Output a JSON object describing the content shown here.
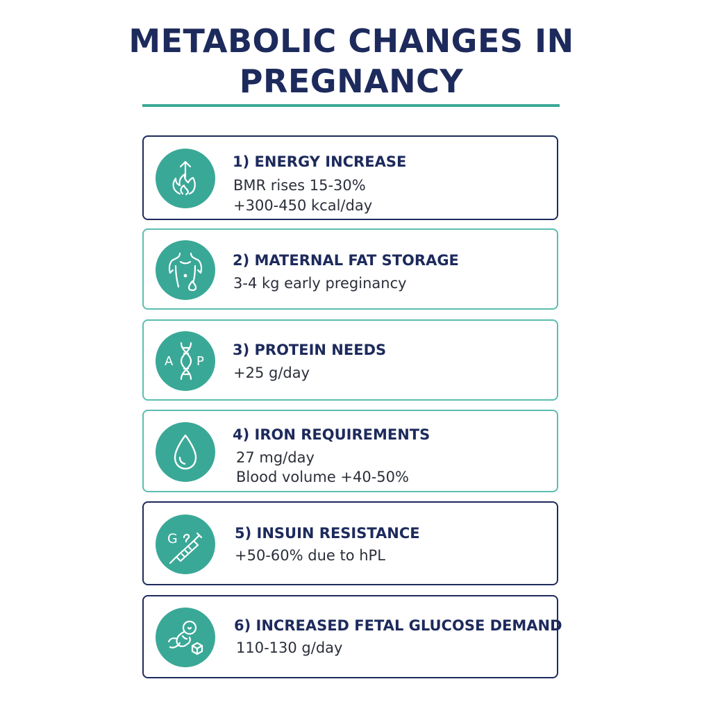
{
  "title": {
    "line1": "METABOLIC CHANGES IN",
    "line2": "PREGNANCY"
  },
  "colors": {
    "navy": "#1d2a5c",
    "teal": "#3aa897",
    "teal_border": "#5bbdaf"
  },
  "cards": [
    {
      "heading": "1) ENERGY INCREASE",
      "lines": [
        "BMR rises 15-30%",
        "+300-450 kcal/day"
      ],
      "icon": "flame-arrow-icon"
    },
    {
      "heading": "2) MATERNAL FAT STORAGE",
      "lines": [
        "3-4 kg early preginancy"
      ],
      "icon": "torso-drop-icon"
    },
    {
      "heading": "3) PROTEIN NEEDS",
      "lines": [
        "+25 g/day"
      ],
      "icon": "dna-icon",
      "icon_letters": [
        "A",
        "P"
      ]
    },
    {
      "heading": "4) IRON REQUIREMENTS",
      "lines": [
        "27 mg/day",
        "Blood volume +40-50%"
      ],
      "icon": "blood-drop-icon"
    },
    {
      "heading": "5) INSUIN RESISTANCE",
      "lines": [
        "+50-60% due to hPL"
      ],
      "icon": "syringe-glucose-icon",
      "icon_letters": [
        "G"
      ]
    },
    {
      "heading": "6) INCREASED FETAL GLUCOSE DEMAND",
      "lines": [
        "110-130 g/day"
      ],
      "icon": "fetus-cube-icon"
    }
  ]
}
